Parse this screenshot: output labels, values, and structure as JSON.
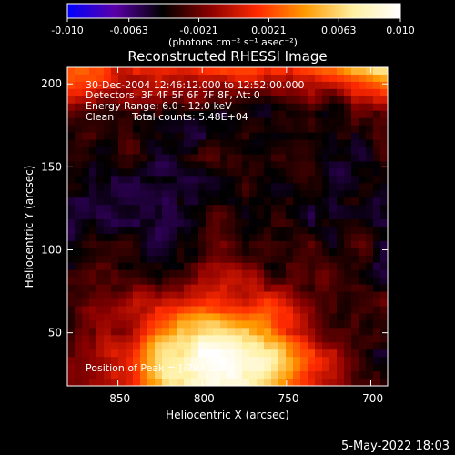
{
  "chart_data": {
    "type": "heatmap",
    "title": "Reconstructed RHESSI Image",
    "xlabel": "Heliocentric X (arcsec)",
    "ylabel": "Heliocentric Y (arcsec)",
    "xlim": [
      -880,
      -690
    ],
    "ylim": [
      18,
      210
    ],
    "x_ticks": [
      "-850",
      "-800",
      "-750",
      "-700"
    ],
    "x_tick_values": [
      -850,
      -800,
      -750,
      -700
    ],
    "y_ticks": [
      "50",
      "100",
      "150",
      "200"
    ],
    "y_tick_values": [
      50,
      100,
      150,
      200
    ],
    "colorbar": {
      "ticks": [
        "-0.010",
        "-0.0063",
        "-0.0021",
        "0.0021",
        "0.0063",
        "0.010"
      ],
      "tick_values": [
        -0.01,
        -0.0063,
        -0.0021,
        0.0021,
        0.0063,
        0.01
      ],
      "range": [
        -0.01,
        0.01
      ],
      "units": "(photons cm⁻² s⁻¹ asec⁻²)",
      "colors": [
        "#0000ff",
        "#5a00a8",
        "#000000",
        "#8a0000",
        "#ff2a00",
        "#ff9a00",
        "#fff0a0",
        "#ffffff"
      ]
    },
    "annotations": {
      "time_range": "30-Dec-2004 12:46:12.000 to 12:52:00.000",
      "detectors": "Detectors: 3F 4F 5F 6F 7F 8F, Att 0",
      "energy_range": "Energy Range: 6.0 - 12.0 keV",
      "clean_label": "Clean",
      "total_counts": "Total counts: 5.48E+04",
      "peak_position": "Position of Peak = [-794.3,"
    },
    "features": {
      "peak_center": [
        -790,
        30
      ],
      "peak_value": 0.01,
      "background_value": -0.004
    }
  },
  "footer": {
    "date": "5-May-2022 18:03"
  }
}
